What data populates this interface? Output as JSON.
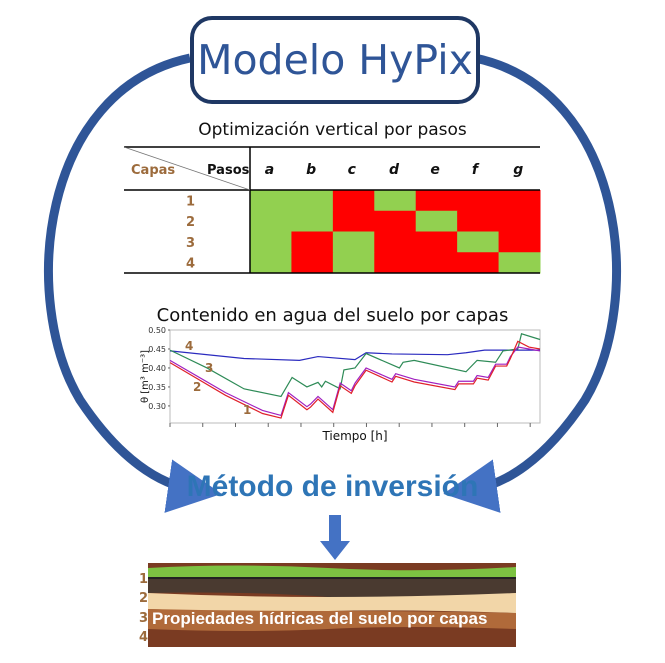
{
  "title": "Modelo HyPix",
  "table": {
    "caption": "Optimización vertical por pasos",
    "row_header": "Capas",
    "col_header": "Pasos",
    "columns": [
      "a",
      "b",
      "c",
      "d",
      "e",
      "f",
      "g"
    ],
    "rows": [
      "1",
      "2",
      "3",
      "4"
    ],
    "cells": [
      [
        "G",
        "G",
        "R",
        "G",
        "R",
        "R",
        "R"
      ],
      [
        "G",
        "G",
        "R",
        "R",
        "G",
        "R",
        "R"
      ],
      [
        "G",
        "R",
        "G",
        "R",
        "R",
        "G",
        "R"
      ],
      [
        "G",
        "R",
        "G",
        "R",
        "R",
        "R",
        "G"
      ]
    ],
    "colors": {
      "G": "#92d050",
      "R": "#ff0000"
    }
  },
  "chart_data": {
    "type": "line",
    "title": "Contenido en agua del suelo por capas",
    "xlabel": "Tiempo [h]",
    "ylabel": "θ [m³ m⁻³]",
    "yticks": [
      "0.30",
      "0.35",
      "0.40",
      "0.45",
      "0.50"
    ],
    "ylim": [
      0.255,
      0.5
    ],
    "xlim": [
      0,
      100
    ],
    "grid": false,
    "series": [
      {
        "name": "4",
        "color": "#2b2bbf",
        "points": [
          [
            0,
            0.445
          ],
          [
            20,
            0.425
          ],
          [
            35,
            0.42
          ],
          [
            40,
            0.43
          ],
          [
            50,
            0.422
          ],
          [
            53,
            0.44
          ],
          [
            60,
            0.437
          ],
          [
            75,
            0.435
          ],
          [
            80,
            0.44
          ],
          [
            85,
            0.447
          ],
          [
            100,
            0.447
          ]
        ]
      },
      {
        "name": "3",
        "color": "#2e8b57",
        "points": [
          [
            0,
            0.447
          ],
          [
            10,
            0.4
          ],
          [
            20,
            0.345
          ],
          [
            30,
            0.325
          ],
          [
            33,
            0.375
          ],
          [
            37,
            0.35
          ],
          [
            40,
            0.362
          ],
          [
            41,
            0.35
          ],
          [
            42,
            0.365
          ],
          [
            46,
            0.345
          ],
          [
            47,
            0.395
          ],
          [
            50,
            0.4
          ],
          [
            53,
            0.438
          ],
          [
            62,
            0.4
          ],
          [
            63,
            0.415
          ],
          [
            66,
            0.42
          ],
          [
            80,
            0.39
          ],
          [
            83,
            0.42
          ],
          [
            88,
            0.415
          ],
          [
            90,
            0.445
          ],
          [
            94,
            0.45
          ],
          [
            95,
            0.49
          ],
          [
            100,
            0.475
          ]
        ]
      },
      {
        "name": "2",
        "color": "#a020c0",
        "points": [
          [
            0,
            0.42
          ],
          [
            15,
            0.335
          ],
          [
            25,
            0.288
          ],
          [
            30,
            0.275
          ],
          [
            32,
            0.335
          ],
          [
            37,
            0.298
          ],
          [
            38,
            0.305
          ],
          [
            40,
            0.325
          ],
          [
            44,
            0.29
          ],
          [
            46,
            0.36
          ],
          [
            49,
            0.34
          ],
          [
            50,
            0.36
          ],
          [
            53,
            0.4
          ],
          [
            60,
            0.37
          ],
          [
            61,
            0.385
          ],
          [
            66,
            0.37
          ],
          [
            77,
            0.35
          ],
          [
            78,
            0.365
          ],
          [
            82,
            0.365
          ],
          [
            83,
            0.38
          ],
          [
            86,
            0.375
          ],
          [
            88,
            0.41
          ],
          [
            91,
            0.41
          ],
          [
            92,
            0.43
          ],
          [
            94,
            0.455
          ],
          [
            100,
            0.445
          ]
        ]
      },
      {
        "name": "1",
        "color": "#e0202a",
        "points": [
          [
            0,
            0.414
          ],
          [
            15,
            0.328
          ],
          [
            25,
            0.28
          ],
          [
            30,
            0.268
          ],
          [
            32,
            0.328
          ],
          [
            37,
            0.29
          ],
          [
            38,
            0.297
          ],
          [
            40,
            0.318
          ],
          [
            44,
            0.283
          ],
          [
            46,
            0.353
          ],
          [
            49,
            0.333
          ],
          [
            50,
            0.353
          ],
          [
            53,
            0.394
          ],
          [
            60,
            0.363
          ],
          [
            61,
            0.378
          ],
          [
            66,
            0.363
          ],
          [
            77,
            0.343
          ],
          [
            78,
            0.358
          ],
          [
            82,
            0.358
          ],
          [
            83,
            0.373
          ],
          [
            86,
            0.368
          ],
          [
            88,
            0.405
          ],
          [
            91,
            0.405
          ],
          [
            92,
            0.425
          ],
          [
            94,
            0.47
          ],
          [
            97,
            0.455
          ],
          [
            100,
            0.45
          ]
        ]
      }
    ]
  },
  "method": "Método de inversión",
  "soil": {
    "layers": [
      "1",
      "2",
      "3",
      "4"
    ],
    "label": "Propiedades hídricas del suelo por capas"
  },
  "colors": {
    "accent": "#2e75b6",
    "arc": "#2f5597",
    "title_border": "#1f3864",
    "layer_label": "#9c6b3c"
  }
}
